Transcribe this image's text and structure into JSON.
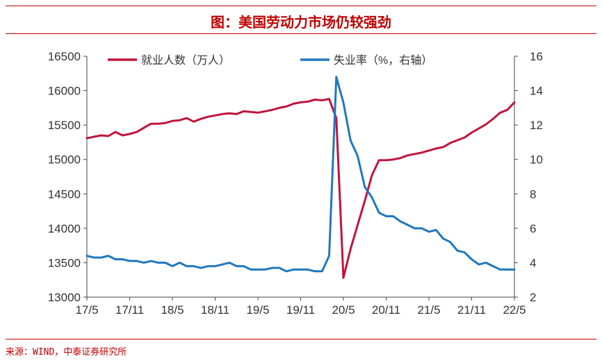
{
  "title": "图：美国劳动力市场仍较强劲",
  "source": "来源：WIND，中泰证券研究所",
  "colors": {
    "employment": "#c0143c",
    "unemployment": "#1f77bf",
    "accent": "#c00000"
  },
  "chart_data": {
    "type": "line",
    "grid": false,
    "legend_position": "top",
    "x_tick_labels": [
      "17/5",
      "17/11",
      "18/5",
      "18/11",
      "19/5",
      "19/11",
      "20/5",
      "20/11",
      "21/5",
      "21/11",
      "22/5"
    ],
    "y_left": {
      "lim": [
        13000,
        16500
      ],
      "ticks": [
        13000,
        13500,
        14000,
        14500,
        15000,
        15500,
        16000,
        16500
      ]
    },
    "y_right": {
      "lim": [
        2,
        16
      ],
      "ticks": [
        2,
        4,
        6,
        8,
        10,
        12,
        14,
        16
      ]
    },
    "series": [
      {
        "name": "就业人数（万人）",
        "axis": "left",
        "color": "#c0143c",
        "x": [
          "2017-05",
          "2017-06",
          "2017-07",
          "2017-08",
          "2017-09",
          "2017-10",
          "2017-11",
          "2017-12",
          "2018-01",
          "2018-02",
          "2018-03",
          "2018-04",
          "2018-05",
          "2018-06",
          "2018-07",
          "2018-08",
          "2018-09",
          "2018-10",
          "2018-11",
          "2018-12",
          "2019-01",
          "2019-02",
          "2019-03",
          "2019-04",
          "2019-05",
          "2019-06",
          "2019-07",
          "2019-08",
          "2019-09",
          "2019-10",
          "2019-11",
          "2019-12",
          "2020-01",
          "2020-02",
          "2020-03",
          "2020-04",
          "2020-05",
          "2020-06",
          "2020-07",
          "2020-08",
          "2020-09",
          "2020-10",
          "2020-11",
          "2020-12",
          "2021-01",
          "2021-02",
          "2021-03",
          "2021-04",
          "2021-05",
          "2021-06",
          "2021-07",
          "2021-08",
          "2021-09",
          "2021-10",
          "2021-11",
          "2021-12",
          "2022-01",
          "2022-02",
          "2022-03",
          "2022-04",
          "2022-05"
        ],
        "values": [
          15310,
          15330,
          15350,
          15340,
          15400,
          15350,
          15370,
          15400,
          15460,
          15520,
          15520,
          15530,
          15560,
          15570,
          15600,
          15550,
          15590,
          15620,
          15640,
          15660,
          15670,
          15660,
          15700,
          15690,
          15680,
          15700,
          15720,
          15750,
          15770,
          15810,
          15830,
          15840,
          15870,
          15860,
          15880,
          15600,
          13280,
          13700,
          14050,
          14400,
          14770,
          14990,
          14990,
          15000,
          15020,
          15060,
          15080,
          15100,
          15130,
          15160,
          15180,
          15240,
          15280,
          15320,
          15390,
          15450,
          15510,
          15590,
          15680,
          15720,
          15830
        ]
      },
      {
        "name": "失业率（%，右轴）",
        "axis": "right",
        "color": "#1f77bf",
        "x": [
          "2017-05",
          "2017-06",
          "2017-07",
          "2017-08",
          "2017-09",
          "2017-10",
          "2017-11",
          "2017-12",
          "2018-01",
          "2018-02",
          "2018-03",
          "2018-04",
          "2018-05",
          "2018-06",
          "2018-07",
          "2018-08",
          "2018-09",
          "2018-10",
          "2018-11",
          "2018-12",
          "2019-01",
          "2019-02",
          "2019-03",
          "2019-04",
          "2019-05",
          "2019-06",
          "2019-07",
          "2019-08",
          "2019-09",
          "2019-10",
          "2019-11",
          "2019-12",
          "2020-01",
          "2020-02",
          "2020-03",
          "2020-04",
          "2020-05",
          "2020-06",
          "2020-07",
          "2020-08",
          "2020-09",
          "2020-10",
          "2020-11",
          "2020-12",
          "2021-01",
          "2021-02",
          "2021-03",
          "2021-04",
          "2021-05",
          "2021-06",
          "2021-07",
          "2021-08",
          "2021-09",
          "2021-10",
          "2021-11",
          "2021-12",
          "2022-01",
          "2022-02",
          "2022-03",
          "2022-04",
          "2022-05"
        ],
        "values": [
          4.4,
          4.3,
          4.3,
          4.4,
          4.2,
          4.2,
          4.1,
          4.1,
          4.0,
          4.1,
          4.0,
          4.0,
          3.8,
          4.0,
          3.8,
          3.8,
          3.7,
          3.8,
          3.8,
          3.9,
          4.0,
          3.8,
          3.8,
          3.6,
          3.6,
          3.6,
          3.7,
          3.7,
          3.5,
          3.6,
          3.6,
          3.6,
          3.5,
          3.5,
          4.4,
          14.8,
          13.3,
          11.1,
          10.2,
          8.4,
          7.8,
          6.9,
          6.7,
          6.7,
          6.4,
          6.2,
          6.0,
          6.0,
          5.8,
          5.9,
          5.4,
          5.2,
          4.7,
          4.6,
          4.2,
          3.9,
          4.0,
          3.8,
          3.6,
          3.6,
          3.6
        ]
      }
    ]
  }
}
